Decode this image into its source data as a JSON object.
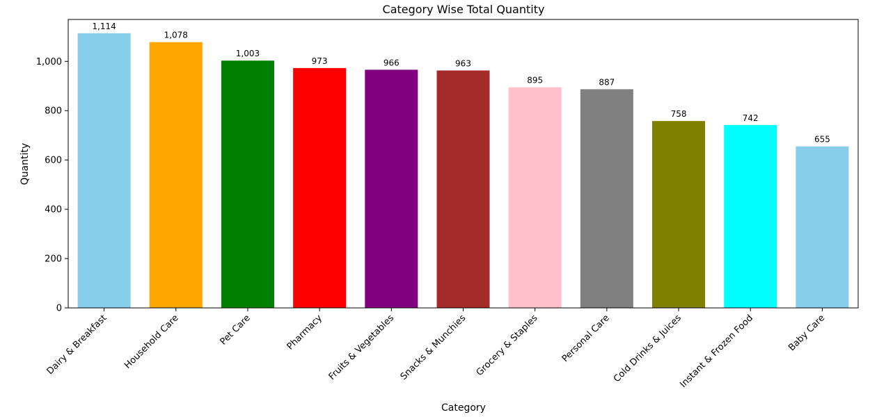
{
  "chart_data": {
    "type": "bar",
    "title": "Category Wise Total Quantity",
    "xlabel": "Category",
    "ylabel": "Quantity",
    "categories": [
      "Dairy & Breakfast",
      "Household Care",
      "Pet Care",
      "Pharmacy",
      "Fruits & Vegetables",
      "Snacks & Munchies",
      "Grocery & Staples",
      "Personal Care",
      "Cold Drinks & Juices",
      "Instant & Frozen Food",
      "Baby Care"
    ],
    "values": [
      1114,
      1078,
      1003,
      973,
      966,
      963,
      895,
      887,
      758,
      742,
      655
    ],
    "value_labels": [
      "1,114",
      "1,078",
      "1,003",
      "973",
      "966",
      "963",
      "895",
      "887",
      "758",
      "742",
      "655"
    ],
    "colors": [
      "#87ceeb",
      "#ffa500",
      "#008000",
      "#ff0000",
      "#800080",
      "#a52a2a",
      "#ffc0cb",
      "#808080",
      "#808000",
      "#00ffff",
      "#87ceeb"
    ],
    "ylim": [
      0,
      1170
    ],
    "yticks": [
      0,
      200,
      400,
      600,
      800,
      1000
    ],
    "ytick_labels": [
      "0",
      "200",
      "400",
      "600",
      "800",
      "1,000"
    ],
    "grid": false,
    "legend": "none"
  }
}
